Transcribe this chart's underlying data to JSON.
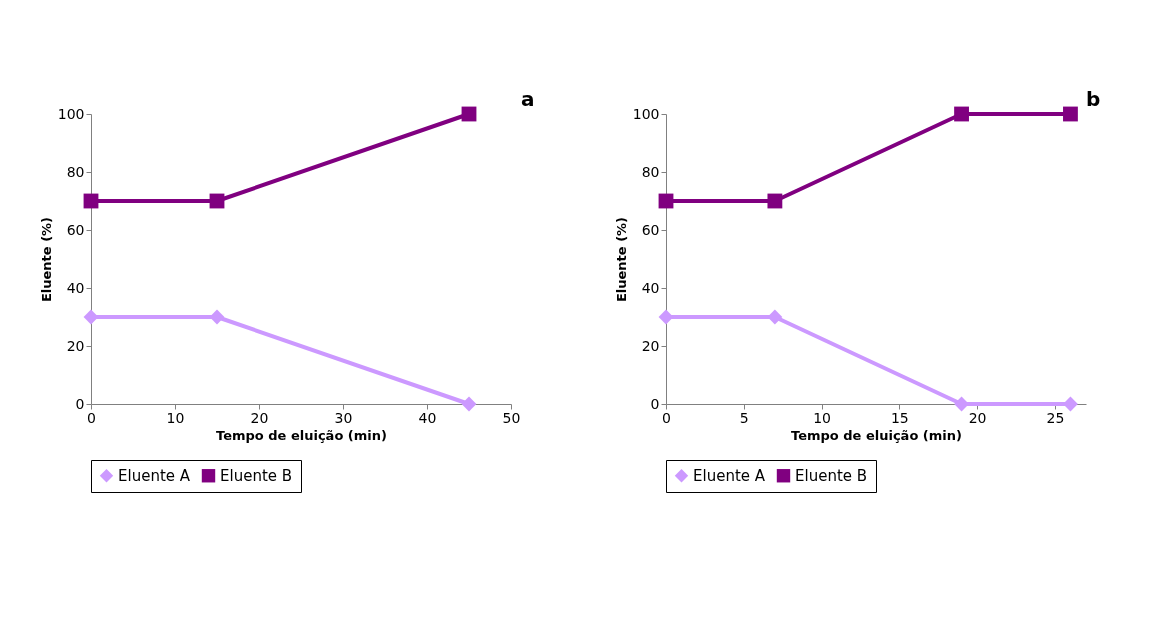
{
  "chart_data": [
    {
      "type": "line",
      "annotations": [
        "a"
      ],
      "xlabel": "Tempo de eluição (min)",
      "ylabel": "Eluente (%)",
      "xlim": [
        0,
        50
      ],
      "xticks": [
        0,
        10,
        20,
        30,
        40,
        50
      ],
      "ylim": [
        0,
        100
      ],
      "yticks": [
        0,
        20,
        40,
        60,
        80,
        100
      ],
      "grid": false,
      "legend": "bottom",
      "x": [
        0,
        15,
        45
      ],
      "series": [
        {
          "name": "Eluente A",
          "color": "#cc99ff",
          "marker": "diamond",
          "values": [
            30,
            30,
            0
          ]
        },
        {
          "name": "Eluente B",
          "color": "#800080",
          "marker": "square",
          "values": [
            70,
            70,
            100
          ]
        }
      ]
    },
    {
      "type": "line",
      "annotations": [
        "b"
      ],
      "xlabel": "Tempo de eluição (min)",
      "ylabel": "Eluente (%)",
      "xlim": [
        0,
        27
      ],
      "xticks": [
        0,
        5,
        10,
        15,
        20,
        25
      ],
      "ylim": [
        0,
        100
      ],
      "yticks": [
        0,
        20,
        40,
        60,
        80,
        100
      ],
      "grid": false,
      "legend": "bottom",
      "x": [
        0,
        7,
        19,
        26
      ],
      "series": [
        {
          "name": "Eluente A",
          "color": "#cc99ff",
          "marker": "diamond",
          "values": [
            30,
            30,
            0,
            0
          ]
        },
        {
          "name": "Eluente B",
          "color": "#800080",
          "marker": "square",
          "values": [
            70,
            70,
            100,
            100
          ]
        }
      ]
    }
  ]
}
